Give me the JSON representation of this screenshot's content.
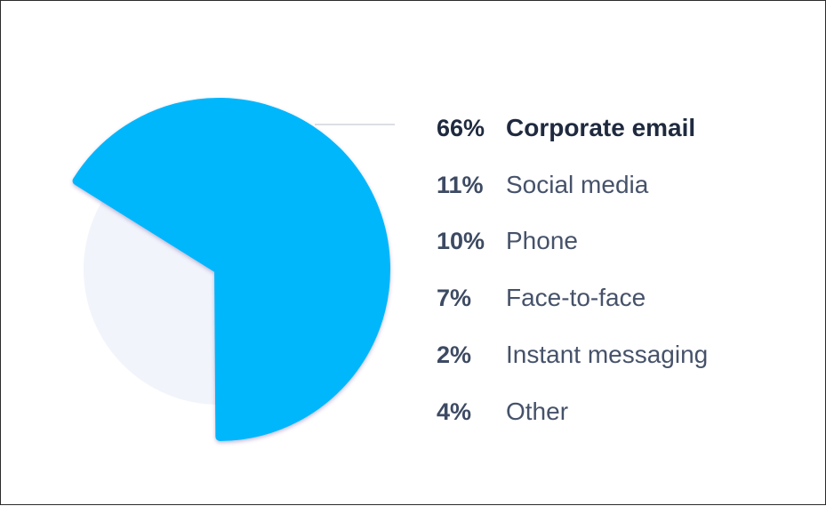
{
  "chart_data": {
    "type": "pie",
    "highlighted": "Corporate email",
    "slices": [
      {
        "label": "Corporate email",
        "pct_label": "66%",
        "value": 66,
        "color": "#00b7fc"
      },
      {
        "label": "Social media",
        "pct_label": "11%",
        "value": 11,
        "color": "#f1f4fb"
      },
      {
        "label": "Phone",
        "pct_label": "10%",
        "value": 10,
        "color": "#f1f4fb"
      },
      {
        "label": "Face-to-face",
        "pct_label": "7%",
        "value": 7,
        "color": "#f1f4fb"
      },
      {
        "label": "Instant messaging",
        "pct_label": "2%",
        "value": 2,
        "color": "#f1f4fb"
      },
      {
        "label": "Other",
        "pct_label": "4%",
        "value": 4,
        "color": "#f1f4fb"
      }
    ]
  }
}
